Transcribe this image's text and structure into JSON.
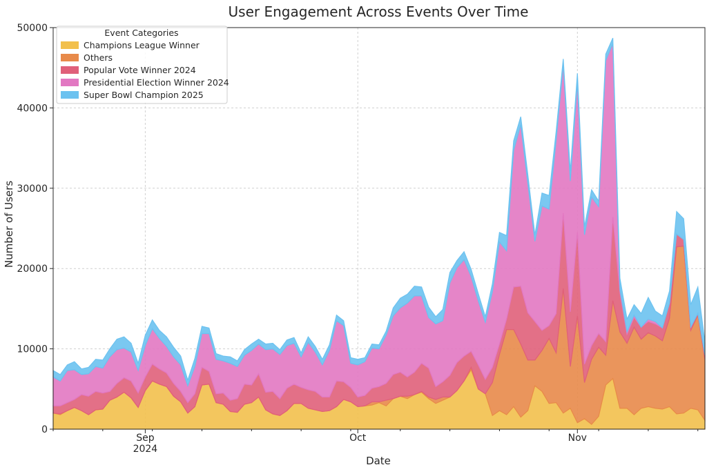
{
  "chart_data": {
    "type": "area",
    "stacked": true,
    "title": "User Engagement Across Events Over Time",
    "xlabel": "Date",
    "ylabel": "Number of Users",
    "ylim": [
      0,
      50000
    ],
    "yticks": [
      0,
      10000,
      20000,
      30000,
      40000,
      50000
    ],
    "xlim": [
      "2024-08-19",
      "2024-11-19"
    ],
    "xticks": [
      {
        "date": "2024-09-01",
        "label": "Sep",
        "sublabel": "2024"
      },
      {
        "date": "2024-10-01",
        "label": "Oct",
        "sublabel": ""
      },
      {
        "date": "2024-11-01",
        "label": "Nov",
        "sublabel": ""
      }
    ],
    "grid": true,
    "legend": {
      "title": "Event Categories",
      "placement": "top-left"
    },
    "x": [
      "2024-08-19",
      "2024-08-20",
      "2024-08-21",
      "2024-08-22",
      "2024-08-23",
      "2024-08-24",
      "2024-08-25",
      "2024-08-26",
      "2024-08-27",
      "2024-08-28",
      "2024-08-29",
      "2024-08-30",
      "2024-08-31",
      "2024-09-01",
      "2024-09-02",
      "2024-09-03",
      "2024-09-04",
      "2024-09-05",
      "2024-09-06",
      "2024-09-07",
      "2024-09-08",
      "2024-09-09",
      "2024-09-10",
      "2024-09-11",
      "2024-09-12",
      "2024-09-13",
      "2024-09-14",
      "2024-09-15",
      "2024-09-16",
      "2024-09-17",
      "2024-09-18",
      "2024-09-19",
      "2024-09-20",
      "2024-09-21",
      "2024-09-22",
      "2024-09-23",
      "2024-09-24",
      "2024-09-25",
      "2024-09-26",
      "2024-09-27",
      "2024-09-28",
      "2024-09-29",
      "2024-09-30",
      "2024-10-01",
      "2024-10-02",
      "2024-10-03",
      "2024-10-04",
      "2024-10-05",
      "2024-10-06",
      "2024-10-07",
      "2024-10-08",
      "2024-10-09",
      "2024-10-10",
      "2024-10-11",
      "2024-10-12",
      "2024-10-13",
      "2024-10-14",
      "2024-10-15",
      "2024-10-16",
      "2024-10-17",
      "2024-10-18",
      "2024-10-19",
      "2024-10-20",
      "2024-10-21",
      "2024-10-22",
      "2024-10-23",
      "2024-10-24",
      "2024-10-25",
      "2024-10-26",
      "2024-10-27",
      "2024-10-28",
      "2024-10-29",
      "2024-10-30",
      "2024-10-31",
      "2024-11-01",
      "2024-11-02",
      "2024-11-03",
      "2024-11-04",
      "2024-11-05",
      "2024-11-06",
      "2024-11-07",
      "2024-11-08",
      "2024-11-09",
      "2024-11-10",
      "2024-11-11",
      "2024-11-12",
      "2024-11-13",
      "2024-11-14",
      "2024-11-15",
      "2024-11-16",
      "2024-11-17",
      "2024-11-18",
      "2024-11-19"
    ],
    "series": [
      {
        "name": "Champions League Winner",
        "color": "#f2c04c",
        "values": [
          2000,
          1800,
          2300,
          2700,
          2300,
          1800,
          2400,
          2500,
          3600,
          4000,
          4600,
          3900,
          2700,
          4800,
          6000,
          5600,
          5300,
          4100,
          3400,
          2000,
          2800,
          5500,
          5600,
          3300,
          3100,
          2200,
          2100,
          3100,
          3300,
          4000,
          2400,
          1900,
          1700,
          2300,
          3200,
          3200,
          2600,
          2400,
          2200,
          2300,
          2800,
          3700,
          3400,
          2800,
          2900,
          3000,
          3300,
          2900,
          3800,
          4100,
          3800,
          4300,
          4600,
          3800,
          3200,
          3600,
          4000,
          4800,
          6000,
          7400,
          5000,
          4400,
          1700,
          2300,
          1800,
          2800,
          1500,
          2300,
          5400,
          4700,
          3200,
          3300,
          2000,
          2600,
          800,
          1300,
          600,
          1600,
          5500,
          6300,
          2600,
          2600,
          1800,
          2600,
          2800,
          2600,
          2500,
          2800,
          1900,
          2000,
          2600,
          2400,
          1100
        ]
      },
      {
        "name": "Others",
        "color": "#e88a4a",
        "values": [
          0,
          100,
          0,
          0,
          0,
          0,
          0,
          0,
          0,
          0,
          0,
          0,
          0,
          0,
          0,
          0,
          0,
          0,
          0,
          0,
          0,
          0,
          0,
          0,
          0,
          0,
          0,
          0,
          0,
          0,
          0,
          0,
          0,
          0,
          0,
          0,
          0,
          0,
          0,
          0,
          0,
          0,
          0,
          0,
          0,
          400,
          100,
          700,
          0,
          0,
          300,
          0,
          100,
          200,
          500,
          400,
          0,
          0,
          0,
          300,
          0,
          0,
          4100,
          7000,
          10600,
          9600,
          9100,
          6300,
          3200,
          5100,
          8100,
          6200,
          15500,
          5200,
          13300,
          4500,
          8100,
          8600,
          3700,
          9700,
          9500,
          8100,
          10900,
          8600,
          9200,
          9000,
          8500,
          11000,
          20800,
          20800,
          9700,
          11800,
          7600
        ]
      },
      {
        "name": "Popular Vote Winner 2024",
        "color": "#e0607a",
        "values": [
          900,
          1000,
          1000,
          1000,
          2000,
          2300,
          2300,
          2000,
          1100,
          1700,
          1800,
          2100,
          1800,
          1700,
          2100,
          1900,
          1700,
          1600,
          1300,
          1300,
          1600,
          2200,
          1600,
          1100,
          1400,
          1400,
          1700,
          2500,
          2200,
          2900,
          2200,
          2800,
          2100,
          2800,
          2400,
          2000,
          2300,
          2300,
          1800,
          1700,
          3200,
          2200,
          1800,
          1200,
          1300,
          1700,
          1900,
          2100,
          3000,
          3000,
          2400,
          2800,
          3500,
          3600,
          1600,
          1900,
          2700,
          3500,
          3100,
          2000,
          3000,
          1800,
          1900,
          1300,
          1300,
          5300,
          7200,
          5900,
          4800,
          2500,
          1600,
          4900,
          9400,
          6800,
          10400,
          2300,
          1700,
          1700,
          1700,
          10400,
          4900,
          1100,
          1200,
          1500,
          1400,
          1500,
          1600,
          1900,
          1600,
          800,
          400,
          200,
          500
        ]
      },
      {
        "name": "Presidential Election Winner 2024",
        "color": "#e278c2",
        "values": [
          3600,
          3100,
          4000,
          3700,
          2500,
          2800,
          3100,
          3100,
          4300,
          4200,
          3700,
          3600,
          2800,
          3900,
          4400,
          3800,
          3300,
          3300,
          3300,
          2100,
          3400,
          4200,
          4700,
          4300,
          4000,
          4600,
          4000,
          3600,
          4300,
          3700,
          5300,
          5300,
          5500,
          5300,
          5100,
          3800,
          5900,
          4900,
          4000,
          5800,
          7500,
          7000,
          3000,
          4000,
          4200,
          5000,
          4700,
          6000,
          7300,
          8000,
          9200,
          9500,
          8400,
          6300,
          7800,
          7600,
          11500,
          11800,
          12000,
          9300,
          8000,
          7100,
          9400,
          12700,
          8500,
          17000,
          20100,
          16100,
          10000,
          15500,
          14500,
          21600,
          18500,
          16300,
          18700,
          16100,
          18500,
          15800,
          35000,
          21600,
          400,
          300,
          300,
          0,
          300,
          300,
          0,
          0,
          0,
          0,
          0,
          0,
          0
        ]
      },
      {
        "name": "Super Bowl Champion 2025",
        "color": "#6cc2f0",
        "values": [
          800,
          800,
          700,
          1000,
          700,
          800,
          900,
          1000,
          1000,
          1300,
          1400,
          1100,
          900,
          1300,
          1100,
          1000,
          1200,
          1200,
          1100,
          700,
          1000,
          900,
          700,
          700,
          600,
          800,
          700,
          700,
          800,
          600,
          700,
          700,
          600,
          700,
          700,
          500,
          700,
          700,
          700,
          700,
          700,
          600,
          700,
          700,
          500,
          500,
          500,
          500,
          1000,
          1200,
          1100,
          1200,
          1100,
          1300,
          900,
          1400,
          1300,
          900,
          1000,
          900,
          900,
          700,
          1000,
          1200,
          1900,
          1200,
          1000,
          1100,
          800,
          1600,
          1700,
          1100,
          700,
          1200,
          1100,
          1000,
          900,
          700,
          800,
          700,
          1400,
          1600,
          1300,
          1700,
          2700,
          1300,
          1500,
          1500,
          2800,
          2600,
          2800,
          3300,
          1600
        ]
      }
    ]
  }
}
